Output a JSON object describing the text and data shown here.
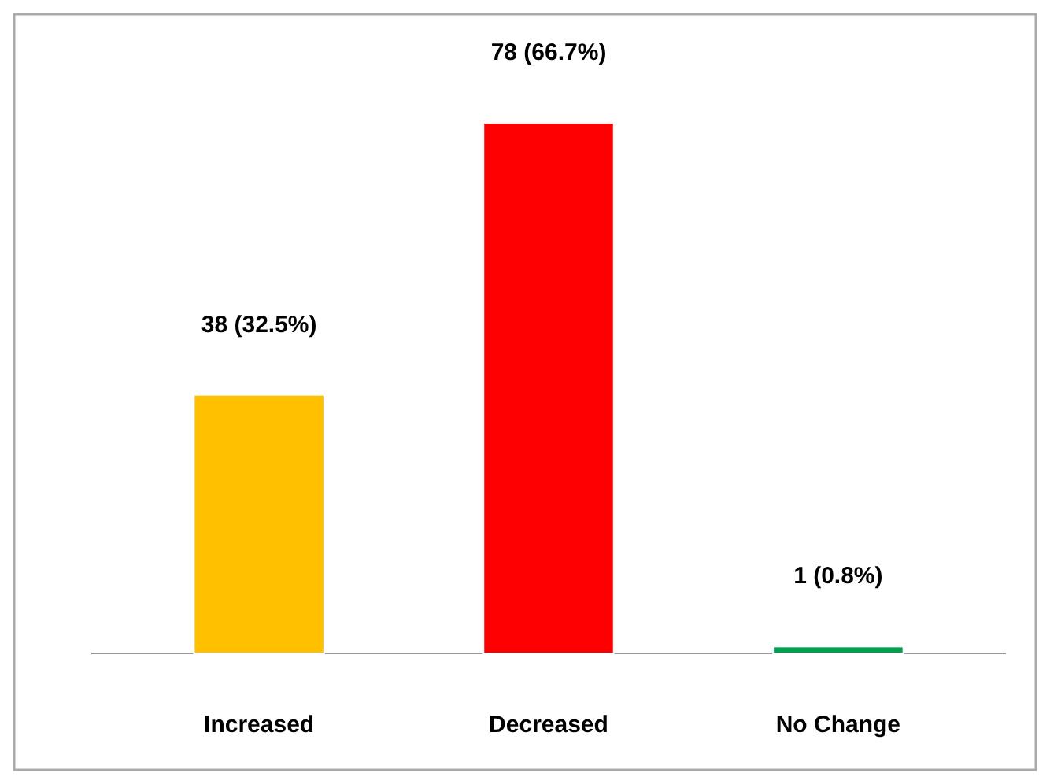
{
  "chart_data": {
    "type": "bar",
    "categories": [
      "Increased",
      "Decreased",
      "No Change"
    ],
    "values": [
      38,
      78,
      1
    ],
    "colors": [
      "#ffc000",
      "#ff0000",
      "#00a050"
    ],
    "value_labels": [
      "38 (32.5%)",
      "78 (66.7%)",
      "1 (0.8%)"
    ]
  }
}
